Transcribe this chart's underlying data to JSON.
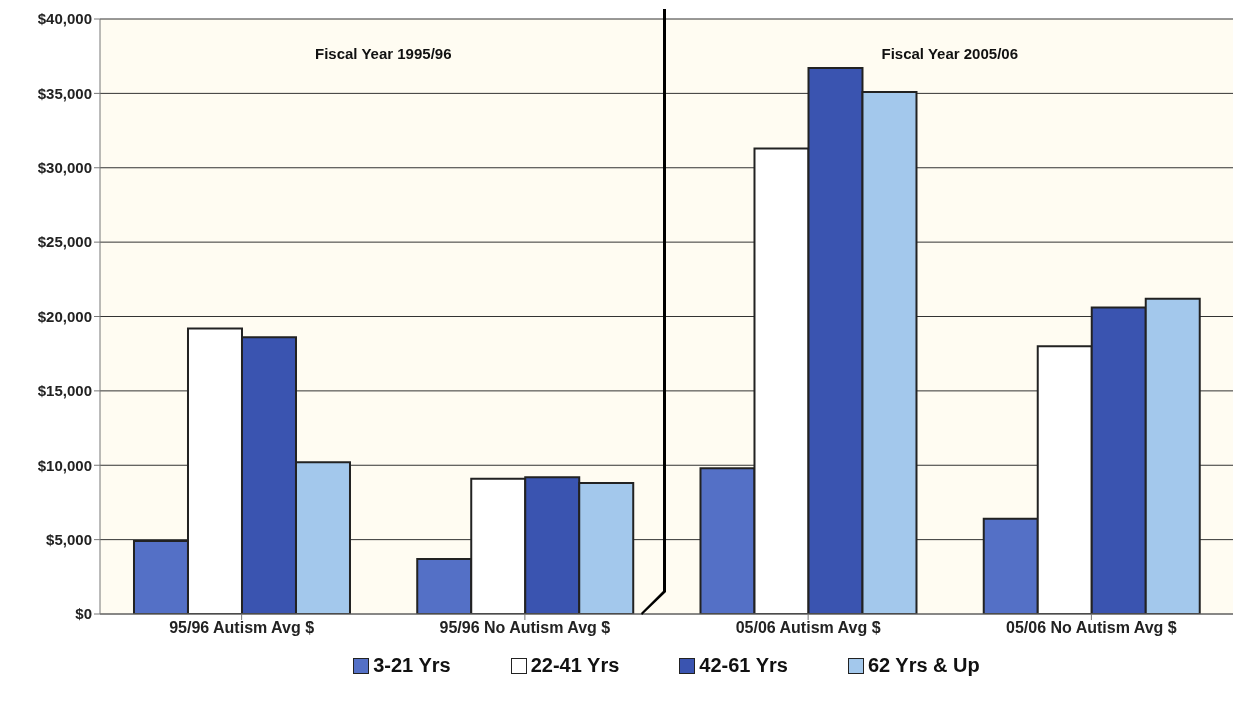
{
  "chart_data": {
    "type": "bar",
    "categories": [
      "95/96 Autism Avg $",
      "95/96 No Autism Avg $",
      "05/06 Autism Avg $",
      "05/06 No Autism Avg $"
    ],
    "series": [
      {
        "name": "3-21 Yrs",
        "color": "#5470c6",
        "values": [
          4900,
          3700,
          9800,
          6400
        ]
      },
      {
        "name": "22-41 Yrs",
        "color": "#ffffff",
        "values": [
          19200,
          9100,
          31300,
          18000
        ]
      },
      {
        "name": "42-61 Yrs",
        "color": "#3a54b0",
        "values": [
          18600,
          9200,
          36700,
          20600
        ]
      },
      {
        "name": "62 Yrs & Up",
        "color": "#a3c8ec",
        "values": [
          10200,
          8800,
          35100,
          21200
        ]
      }
    ],
    "ylim": [
      0,
      40000
    ],
    "yticks": [
      {
        "value": 0,
        "label": "$0"
      },
      {
        "value": 5000,
        "label": "$5,000"
      },
      {
        "value": 10000,
        "label": "$10,000"
      },
      {
        "value": 15000,
        "label": "$15,000"
      },
      {
        "value": 20000,
        "label": "$20,000"
      },
      {
        "value": 25000,
        "label": "$25,000"
      },
      {
        "value": 30000,
        "label": "$30,000"
      },
      {
        "value": 35000,
        "label": "$35,000"
      },
      {
        "value": 40000,
        "label": "$40,000"
      }
    ],
    "grid": "y",
    "legend": "bottom",
    "annotations": [
      "Fiscal Year 1995/96",
      "Fiscal Year 2005/06"
    ]
  }
}
